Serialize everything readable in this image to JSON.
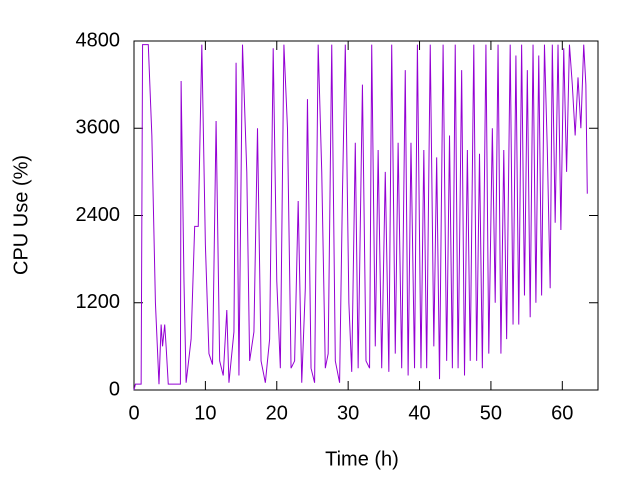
{
  "chart_data": {
    "type": "line",
    "x_label": "Time (h)",
    "y_label": "CPU Use (%)",
    "xlim": [
      0,
      65
    ],
    "ylim": [
      0,
      4800
    ],
    "xticks": [
      0,
      10,
      20,
      30,
      40,
      50,
      60
    ],
    "yticks": [
      0,
      1200,
      2400,
      3600,
      4800
    ],
    "grid": false,
    "x": [
      0,
      0.2,
      1.0,
      1.2,
      2.0,
      2.5,
      3.0,
      3.5,
      3.8,
      4.0,
      4.3,
      4.5,
      4.8,
      6.5,
      6.6,
      7.0,
      7.3,
      8.0,
      8.5,
      9.0,
      9.5,
      10.0,
      10.5,
      11.0,
      11.5,
      12.0,
      12.5,
      13.0,
      13.3,
      14.0,
      14.3,
      14.7,
      15.2,
      15.8,
      16.2,
      16.8,
      17.3,
      17.8,
      18.4,
      19.0,
      19.5,
      20.0,
      20.5,
      21.0,
      21.5,
      22.0,
      22.5,
      23.0,
      23.5,
      24.0,
      24.3,
      24.8,
      25.3,
      25.8,
      26.3,
      26.8,
      27.2,
      27.7,
      28.2,
      28.8,
      29.2,
      29.6,
      30.1,
      30.5,
      31.0,
      31.4,
      32.0,
      32.5,
      33.0,
      33.3,
      33.8,
      34.2,
      34.7,
      35.2,
      35.7,
      36.1,
      36.6,
      37.0,
      37.5,
      38.0,
      38.4,
      38.8,
      39.3,
      39.7,
      40.2,
      40.6,
      41.0,
      41.5,
      42.0,
      42.4,
      42.8,
      43.3,
      43.8,
      44.2,
      44.6,
      45.0,
      45.4,
      45.9,
      46.3,
      46.7,
      47.1,
      47.6,
      48.0,
      48.4,
      48.8,
      49.3,
      49.7,
      50.2,
      50.6,
      51.0,
      51.4,
      51.8,
      52.2,
      52.7,
      53.1,
      53.5,
      53.9,
      54.3,
      54.7,
      55.1,
      55.5,
      55.9,
      56.3,
      56.7,
      57.1,
      57.5,
      57.9,
      58.3,
      58.6,
      59.0,
      59.4,
      59.8,
      60.2,
      60.6,
      61.0,
      61.4,
      61.8,
      62.2,
      62.6,
      63.0,
      63.3,
      63.5
    ],
    "series": [
      {
        "name": "CPU",
        "color": "#9400d3",
        "values": [
          0,
          80,
          80,
          4750,
          4750,
          3500,
          1200,
          80,
          900,
          600,
          900,
          600,
          80,
          80,
          4250,
          1500,
          100,
          700,
          2250,
          2250,
          4750,
          2000,
          500,
          350,
          3700,
          400,
          200,
          1100,
          100,
          800,
          4500,
          200,
          4750,
          3000,
          400,
          800,
          3600,
          400,
          100,
          700,
          4700,
          1500,
          300,
          4750,
          3600,
          300,
          400,
          2600,
          100,
          1400,
          4000,
          300,
          100,
          4750,
          3000,
          300,
          500,
          4750,
          400,
          100,
          2700,
          4750,
          1200,
          250,
          3400,
          300,
          4200,
          400,
          300,
          4750,
          600,
          3300,
          300,
          3000,
          250,
          4750,
          500,
          3400,
          300,
          4400,
          200,
          3400,
          300,
          4750,
          300,
          3300,
          300,
          4750,
          600,
          3200,
          150,
          4750,
          400,
          3500,
          300,
          4750,
          300,
          4400,
          200,
          3300,
          400,
          4750,
          400,
          3250,
          300,
          4750,
          500,
          3600,
          1200,
          4750,
          500,
          3300,
          700,
          4750,
          900,
          4600,
          900,
          4750,
          1300,
          4400,
          1000,
          4750,
          1200,
          4600,
          1300,
          4750,
          3300,
          1400,
          4750,
          2300,
          4750,
          2200,
          4700,
          3000,
          4750,
          4200,
          3500,
          4300,
          3600,
          4750,
          4200,
          2700
        ]
      }
    ]
  }
}
